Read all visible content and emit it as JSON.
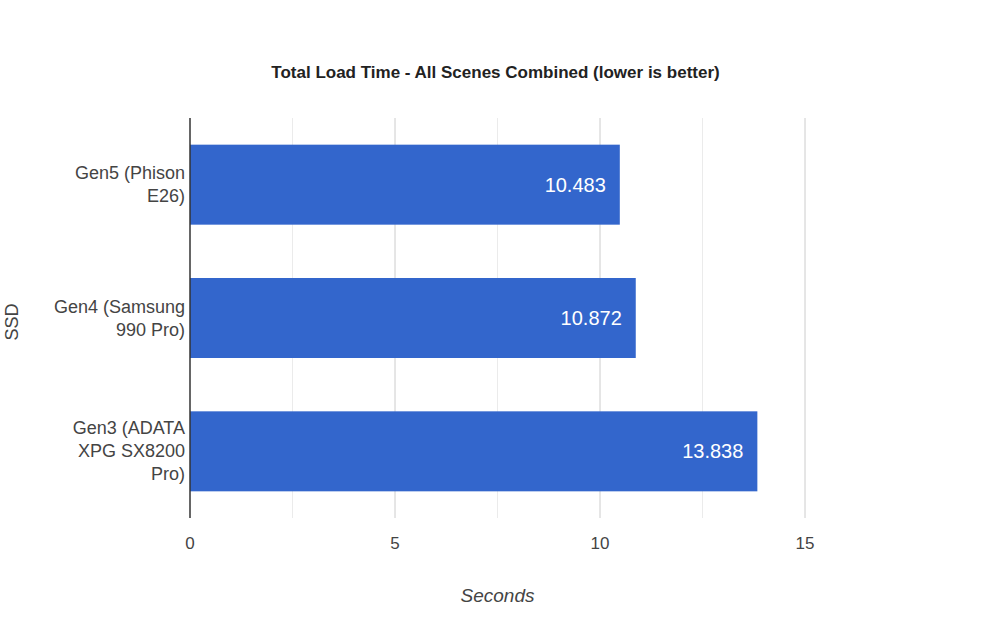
{
  "chart_data": {
    "type": "bar",
    "orientation": "horizontal",
    "title": "Total Load Time - All Scenes Combined (lower is better)",
    "x_label": "Seconds",
    "y_label": "SSD",
    "categories": [
      "Gen5 (Phison E26)",
      "Gen4 (Samsung 990 Pro)",
      "Gen3 (ADATA XPG SX8200 Pro)"
    ],
    "values": [
      10.483,
      10.872,
      13.838
    ],
    "color": "#3366cc",
    "xlim": [
      0,
      15
    ],
    "xticks": [
      0,
      5,
      10,
      15
    ],
    "grid": true,
    "data_labels": true
  }
}
